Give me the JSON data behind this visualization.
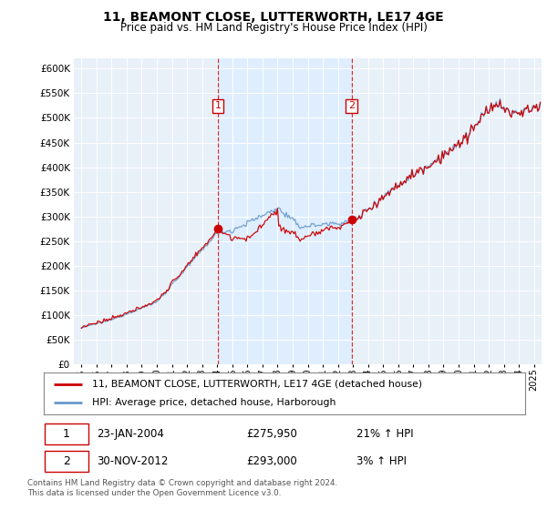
{
  "title": "11, BEAMONT CLOSE, LUTTERWORTH, LE17 4GE",
  "subtitle": "Price paid vs. HM Land Registry's House Price Index (HPI)",
  "legend_line1": "11, BEAMONT CLOSE, LUTTERWORTH, LE17 4GE (detached house)",
  "legend_line2": "HPI: Average price, detached house, Harborough",
  "transaction1_date": "23-JAN-2004",
  "transaction1_price": "£275,950",
  "transaction1_hpi": "21% ↑ HPI",
  "transaction1_year": 2004.06,
  "transaction1_value": 275950,
  "transaction2_date": "30-NOV-2012",
  "transaction2_price": "£293,000",
  "transaction2_hpi": "3% ↑ HPI",
  "transaction2_year": 2012.92,
  "transaction2_value": 293000,
  "red_line_color": "#cc0000",
  "blue_line_color": "#6699cc",
  "shade_color": "#ddeeff",
  "plot_bg_color": "#e8f0f8",
  "footer": "Contains HM Land Registry data © Crown copyright and database right 2024.\nThis data is licensed under the Open Government Licence v3.0.",
  "ylim": [
    0,
    620000
  ],
  "xlim_start": 1994.5,
  "xlim_end": 2025.5,
  "yticks": [
    0,
    50000,
    100000,
    150000,
    200000,
    250000,
    300000,
    350000,
    400000,
    450000,
    500000,
    550000,
    600000
  ],
  "title_fontsize": 10,
  "subtitle_fontsize": 8.5
}
